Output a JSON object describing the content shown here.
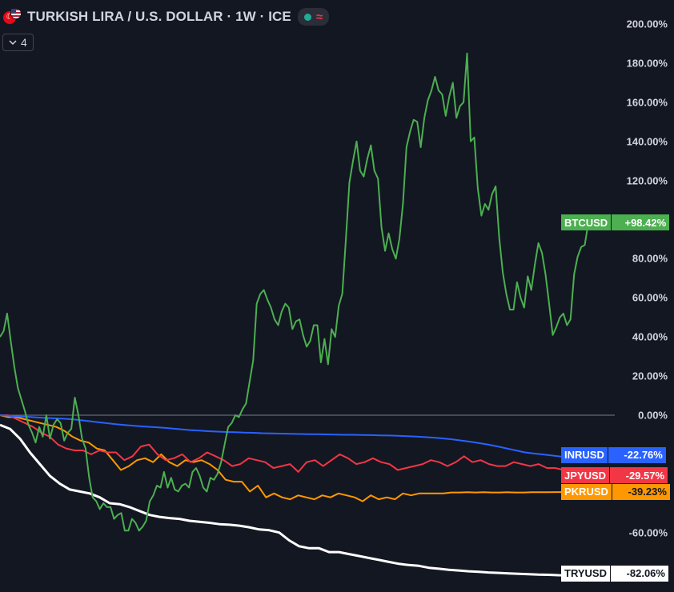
{
  "header": {
    "title": "TURKISH LIRA / U.S. DOLLAR · 1W · ICE",
    "collapse_count": "4",
    "status_wave": "≈"
  },
  "colors": {
    "background": "#131722",
    "BTCUSD": "#4caf50",
    "INRUSD": "#2962ff",
    "JPYUSD": "#f23645",
    "PKRUSD": "#ff9800",
    "TRYUSD": "#ffffff",
    "zero_line": "#787b86"
  },
  "chart_data": {
    "type": "line",
    "y_unit": "%",
    "ylim": [
      -82,
      200
    ],
    "y_ticks": [
      "200.00%",
      "180.00%",
      "160.00%",
      "140.00%",
      "120.00%",
      "80.00%",
      "60.00%",
      "40.00%",
      "20.00%",
      "0.00%",
      "-60.00%"
    ],
    "grid": false,
    "zero_line": true,
    "series": [
      {
        "name": "BTCUSD",
        "last_label": "+98.42%",
        "last_value": 98.42,
        "values": [
          40,
          43,
          52,
          38,
          25,
          14,
          8,
          2,
          -5,
          -9,
          -14,
          -6,
          -11,
          0,
          -12,
          -5,
          -2,
          -4,
          -13,
          -9,
          -7,
          9,
          0,
          -12,
          -17,
          -32,
          -42,
          -44,
          -48,
          -45,
          -47,
          -47,
          -53,
          -51,
          -50,
          -59,
          -59,
          -53,
          -55,
          -59,
          -57,
          -54,
          -44,
          -41,
          -36,
          -37,
          -29,
          -37,
          -32,
          -38,
          -39,
          -36,
          -35,
          -37,
          -29,
          -27,
          -31,
          -37,
          -39,
          -32,
          -33,
          -30,
          -24,
          -15,
          -6,
          -4,
          0,
          -1,
          3,
          6,
          17,
          28,
          57,
          62,
          64,
          59,
          55,
          49,
          46,
          53,
          57,
          55,
          44,
          48,
          49,
          41,
          35,
          38,
          46,
          46,
          27,
          39,
          26,
          44,
          40,
          56,
          62,
          90,
          119,
          130,
          140,
          125,
          122,
          131,
          138,
          125,
          121,
          96,
          84,
          93,
          85,
          80,
          90,
          108,
          137,
          145,
          151,
          150,
          137,
          152,
          161,
          166,
          173,
          166,
          164,
          153,
          163,
          170,
          152,
          158,
          160,
          185,
          140,
          142,
          116,
          102,
          108,
          105,
          113,
          117,
          91,
          73,
          62,
          54,
          54,
          68,
          60,
          55,
          71,
          64,
          77,
          88,
          83,
          72,
          57,
          41,
          45,
          50,
          52,
          46,
          49,
          72,
          81,
          86,
          87,
          98.42
        ]
      },
      {
        "name": "INRUSD",
        "last_label": "-22.76%",
        "last_value": -22.76,
        "values": [
          0,
          -0.3,
          -0.6,
          -0.8,
          -1.1,
          -1.4,
          -1.6,
          -1.8,
          -2.1,
          -2.6,
          -3.1,
          -3.7,
          -4.2,
          -4.7,
          -5.1,
          -5.5,
          -5.8,
          -6.1,
          -6.4,
          -6.8,
          -7.2,
          -7.6,
          -7.9,
          -8.2,
          -8.4,
          -8.6,
          -8.7,
          -8.9,
          -9,
          -9.2,
          -9.3,
          -9.4,
          -9.5,
          -9.6,
          -9.7,
          -9.7,
          -9.8,
          -9.9,
          -10,
          -10,
          -10.1,
          -10.2,
          -10.3,
          -10.4,
          -10.5,
          -10.7,
          -10.9,
          -11.2,
          -11.5,
          -11.9,
          -12.4,
          -13,
          -13.6,
          -14.3,
          -15.1,
          -16,
          -17,
          -18,
          -19,
          -19.6,
          -20.1,
          -20.6,
          -21.2,
          -21.9,
          -22.4,
          -22.76
        ]
      },
      {
        "name": "JPYUSD",
        "last_label": "-29.57%",
        "last_value": -29.57,
        "values": [
          0,
          0,
          -2,
          -4,
          -6,
          -9,
          -11,
          -15,
          -17,
          -18,
          -18,
          -20,
          -18,
          -19,
          -19,
          -23,
          -21,
          -16,
          -15,
          -20,
          -23,
          -22,
          -20,
          -24,
          -22,
          -19,
          -21,
          -23,
          -26,
          -25,
          -22,
          -23,
          -24,
          -27,
          -26,
          -25,
          -29,
          -24,
          -23,
          -26,
          -23,
          -20,
          -22,
          -25,
          -24,
          -22,
          -24,
          -25,
          -28,
          -27,
          -26,
          -25,
          -23,
          -24,
          -26,
          -24,
          -21,
          -24,
          -23,
          -25,
          -26,
          -26,
          -24,
          -25,
          -26,
          -25,
          -27,
          -27,
          -28,
          -27,
          -28,
          -29.57
        ]
      },
      {
        "name": "PKRUSD",
        "last_label": "-39.23%",
        "last_value": -39.23,
        "values": [
          0,
          -1,
          -1,
          -2,
          -3,
          -4,
          -5,
          -6,
          -8,
          -11,
          -13,
          -14,
          -17,
          -18,
          -23,
          -28,
          -26,
          -23,
          -22,
          -24,
          -20,
          -24,
          -26,
          -23,
          -24,
          -23,
          -25,
          -28,
          -33,
          -34,
          -34,
          -39,
          -36,
          -42,
          -40,
          -42,
          -43,
          -41,
          -42,
          -43,
          -41,
          -42,
          -40,
          -41,
          -42,
          -44,
          -41,
          -43,
          -42,
          -43,
          -40,
          -41,
          -40,
          -40,
          -40,
          -40,
          -39.5,
          -39.5,
          -39.4,
          -39.5,
          -39.4,
          -39.5,
          -39.5,
          -39.4,
          -39.5,
          -39.5,
          -39.4,
          -39.4,
          -39.4,
          -39.3,
          -39.3,
          -39.3,
          -39.3,
          -39.23
        ]
      },
      {
        "name": "TRYUSD",
        "last_label": "-82.06%",
        "last_value": -82.06,
        "values": [
          -5,
          -7,
          -12,
          -19,
          -25,
          -31,
          -35,
          -38,
          -39,
          -40,
          -42,
          -45,
          -45.5,
          -47,
          -49,
          -51,
          -52,
          -52.6,
          -53,
          -54,
          -54.5,
          -55,
          -55.7,
          -56,
          -56.5,
          -57.3,
          -58.4,
          -58.8,
          -60,
          -64,
          -67,
          -68,
          -68,
          -70,
          -70,
          -71,
          -72,
          -73,
          -74,
          -75,
          -76,
          -76.6,
          -77,
          -78,
          -78.5,
          -79,
          -79.4,
          -79.8,
          -80.1,
          -80.4,
          -80.6,
          -80.9,
          -81.1,
          -81.3,
          -81.5,
          -81.6,
          -81.8,
          -81.9,
          -82,
          -82.06
        ]
      }
    ]
  }
}
